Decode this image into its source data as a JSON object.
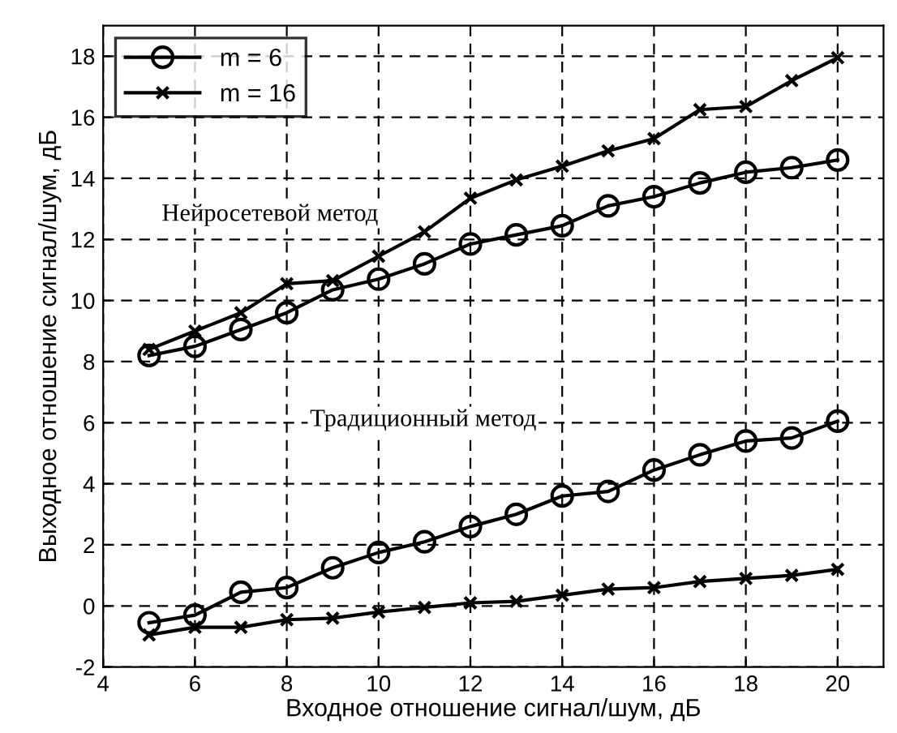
{
  "chart_data": {
    "type": "line",
    "xlabel": "Входное отношение сигнал/шум, дБ",
    "ylabel": "Выходное отношение сигнал/шум, дБ",
    "x": [
      5,
      6,
      7,
      8,
      9,
      10,
      11,
      12,
      13,
      14,
      15,
      16,
      17,
      18,
      19,
      20
    ],
    "series": [
      {
        "name": "m = 6",
        "color": "#000000",
        "marker": "circle",
        "values": [
          8.2,
          8.5,
          9.05,
          9.6,
          10.35,
          10.7,
          11.2,
          11.85,
          12.15,
          12.45,
          13.1,
          13.4,
          13.85,
          14.2,
          14.35,
          14.6
        ]
      },
      {
        "name": "m = 16",
        "color": "#000000",
        "marker": "cross",
        "values": [
          8.4,
          9.0,
          9.6,
          10.55,
          10.65,
          11.45,
          12.25,
          13.35,
          13.95,
          14.4,
          14.9,
          15.3,
          16.25,
          16.35,
          17.2,
          17.95
        ]
      },
      {
        "color": "#000000",
        "marker": "circle",
        "values": [
          -0.55,
          -0.3,
          0.45,
          0.6,
          1.25,
          1.75,
          2.1,
          2.6,
          3.0,
          3.6,
          3.75,
          4.45,
          4.95,
          5.4,
          5.5,
          6.05
        ]
      },
      {
        "color": "#000000",
        "marker": "cross",
        "values": [
          -0.95,
          -0.7,
          -0.7,
          -0.45,
          -0.4,
          -0.2,
          -0.05,
          0.1,
          0.15,
          0.35,
          0.55,
          0.6,
          0.8,
          0.9,
          1.0,
          1.2
        ]
      }
    ],
    "annotations": [
      "Нейросетевой метод",
      "Традиционный метод"
    ],
    "xlim": [
      4,
      21
    ],
    "ylim": [
      -2,
      19
    ],
    "xticks": [
      4,
      6,
      8,
      10,
      12,
      14,
      16,
      18,
      20
    ],
    "yticks": [
      -2,
      0,
      2,
      4,
      6,
      8,
      10,
      12,
      14,
      16,
      18
    ],
    "grid": true,
    "legend": "top left",
    "line_style": "solid"
  }
}
